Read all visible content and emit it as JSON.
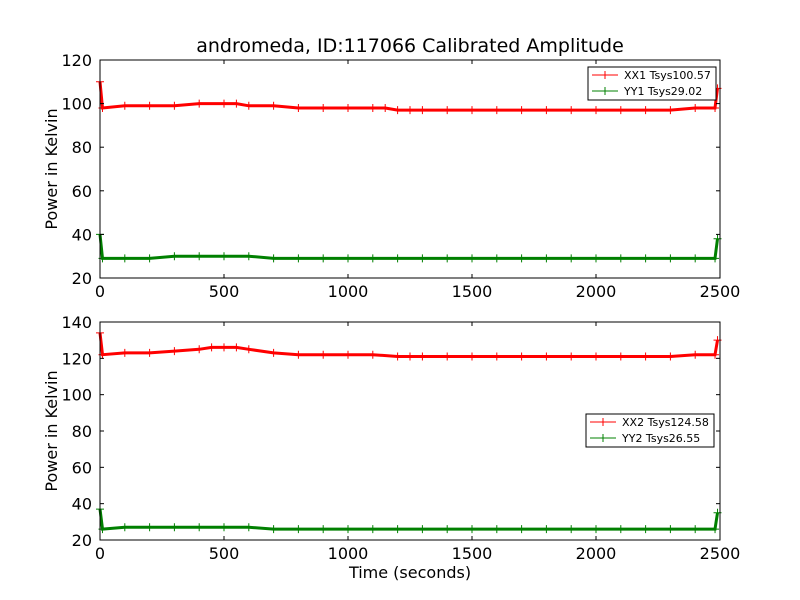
{
  "title": "andromeda, ID:117066 Calibrated Amplitude",
  "colors": {
    "xx": "#ff0000",
    "yy": "#008000"
  },
  "chart_data": [
    {
      "type": "line",
      "xlabel": "",
      "ylabel": "Power in Kelvin",
      "xlim": [
        0,
        2500
      ],
      "ylim": [
        20,
        120
      ],
      "xticks": [
        "0",
        "500",
        "1000",
        "1500",
        "2000",
        "2500"
      ],
      "yticks": [
        "20",
        "40",
        "60",
        "80",
        "100",
        "120"
      ],
      "legend_position": "top-right",
      "grid": false,
      "marker": "+",
      "series": [
        {
          "name": "XX1 Tsys100.57",
          "color": "#ff0000",
          "x": [
            0,
            10,
            100,
            200,
            300,
            400,
            500,
            550,
            600,
            700,
            800,
            900,
            1000,
            1100,
            1150,
            1200,
            1250,
            1300,
            1400,
            1500,
            1600,
            1700,
            1800,
            1900,
            2000,
            2100,
            2200,
            2300,
            2400,
            2480,
            2490
          ],
          "y": [
            110,
            98,
            99,
            99,
            99,
            100,
            100,
            100,
            99,
            99,
            98,
            98,
            98,
            98,
            98,
            97,
            97,
            97,
            97,
            97,
            97,
            97,
            97,
            97,
            97,
            97,
            97,
            97,
            98,
            98,
            107
          ]
        },
        {
          "name": "YY1 Tsys29.02",
          "color": "#008000",
          "x": [
            0,
            10,
            100,
            200,
            300,
            400,
            500,
            600,
            700,
            800,
            900,
            1000,
            1100,
            1200,
            1300,
            1400,
            1500,
            1600,
            1700,
            1800,
            1900,
            2000,
            2100,
            2200,
            2300,
            2400,
            2480,
            2490
          ],
          "y": [
            40,
            29,
            29,
            29,
            30,
            30,
            30,
            30,
            29,
            29,
            29,
            29,
            29,
            29,
            29,
            29,
            29,
            29,
            29,
            29,
            29,
            29,
            29,
            29,
            29,
            29,
            29,
            38
          ]
        }
      ]
    },
    {
      "type": "line",
      "xlabel": "Time (seconds)",
      "ylabel": "Power in Kelvin",
      "xlim": [
        0,
        2500
      ],
      "ylim": [
        20,
        140
      ],
      "xticks": [
        "0",
        "500",
        "1000",
        "1500",
        "2000",
        "2500"
      ],
      "yticks": [
        "20",
        "40",
        "60",
        "80",
        "100",
        "120",
        "140"
      ],
      "legend_position": "center-right",
      "grid": false,
      "marker": "+",
      "series": [
        {
          "name": "XX2 Tsys124.58",
          "color": "#ff0000",
          "x": [
            0,
            10,
            100,
            200,
            300,
            400,
            450,
            500,
            550,
            600,
            700,
            800,
            900,
            1000,
            1100,
            1200,
            1250,
            1300,
            1400,
            1500,
            1600,
            1700,
            1800,
            1900,
            2000,
            2100,
            2200,
            2300,
            2400,
            2480,
            2490
          ],
          "y": [
            134,
            122,
            123,
            123,
            124,
            125,
            126,
            126,
            126,
            125,
            123,
            122,
            122,
            122,
            122,
            121,
            121,
            121,
            121,
            121,
            121,
            121,
            121,
            121,
            121,
            121,
            121,
            121,
            122,
            122,
            130
          ]
        },
        {
          "name": "YY2 Tsys26.55",
          "color": "#008000",
          "x": [
            0,
            10,
            100,
            200,
            300,
            400,
            500,
            600,
            700,
            800,
            900,
            1000,
            1100,
            1200,
            1300,
            1400,
            1500,
            1600,
            1700,
            1800,
            1900,
            2000,
            2100,
            2200,
            2300,
            2400,
            2480,
            2490
          ],
          "y": [
            37,
            26,
            27,
            27,
            27,
            27,
            27,
            27,
            26,
            26,
            26,
            26,
            26,
            26,
            26,
            26,
            26,
            26,
            26,
            26,
            26,
            26,
            26,
            26,
            26,
            26,
            26,
            35
          ]
        }
      ]
    }
  ]
}
